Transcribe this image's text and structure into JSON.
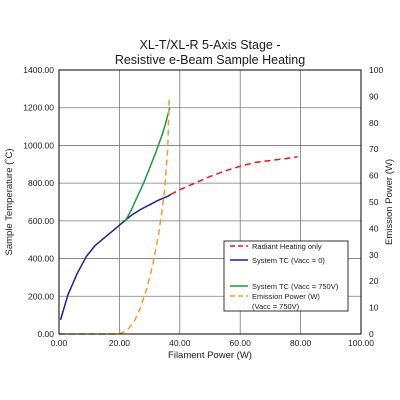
{
  "chart_data": {
    "type": "line",
    "title_lines": [
      "XL-T/XL-R 5-Axis Stage -",
      "Resistive e-Beam Sample Heating"
    ],
    "xlabel": "Filament Power (W)",
    "ylabel": "Sample Temperature (˚C)",
    "y2label": "Emission Power (W)",
    "xlim": [
      0,
      100
    ],
    "ylim": [
      0,
      1400
    ],
    "y2lim": [
      0,
      100
    ],
    "x_ticks": [
      "0.00",
      "20.00",
      "40.00",
      "60.00",
      "80.00",
      "100.00"
    ],
    "y_ticks": [
      "0.00",
      "200.00",
      "400.00",
      "600.00",
      "800.00",
      "1000.00",
      "1200.00",
      "1400.00"
    ],
    "y2_ticks": [
      "0",
      "10",
      "20",
      "30",
      "40",
      "50",
      "60",
      "70",
      "80",
      "90",
      "100"
    ],
    "grid": true,
    "legend_position": "lower-right",
    "series": [
      {
        "name": "Radiant Heating only",
        "axis": "left",
        "color": "#e8141b",
        "style": "dashed",
        "x": [
          37,
          40,
          45,
          50,
          55,
          60,
          65,
          70,
          75,
          79
        ],
        "y": [
          740,
          765,
          800,
          835,
          865,
          890,
          910,
          920,
          930,
          940
        ]
      },
      {
        "name": "System TC (Vacc = 0)",
        "axis": "left",
        "color": "#1f1f9a",
        "style": "solid",
        "x": [
          0.5,
          3,
          6,
          9,
          12,
          15,
          18,
          21,
          24,
          27,
          30,
          33,
          36,
          37
        ],
        "y": [
          75,
          210,
          320,
          410,
          470,
          510,
          550,
          590,
          630,
          660,
          685,
          710,
          730,
          740
        ]
      },
      {
        "name": "System TC (Vacc = 750V)",
        "axis": "left",
        "color": "#1a9a3a",
        "style": "solid",
        "x": [
          22,
          24,
          26,
          28,
          30,
          32,
          34,
          35,
          36,
          36.7
        ],
        "y": [
          600,
          660,
          730,
          800,
          880,
          960,
          1050,
          1100,
          1160,
          1200
        ]
      },
      {
        "name": "Emission Power (W)\n(Vacc = 750V)",
        "name_lines": [
          "Emission Power (W)",
          "(Vacc = 750V)"
        ],
        "axis": "right",
        "color": "#f39a2a",
        "style": "dashed",
        "x": [
          0,
          10,
          18,
          21,
          23,
          25,
          27,
          29,
          31,
          33,
          34,
          35,
          36,
          36.5
        ],
        "y": [
          0,
          0,
          0,
          0.5,
          2,
          5,
          10,
          17,
          26,
          38,
          46,
          55,
          70,
          90
        ]
      }
    ]
  }
}
